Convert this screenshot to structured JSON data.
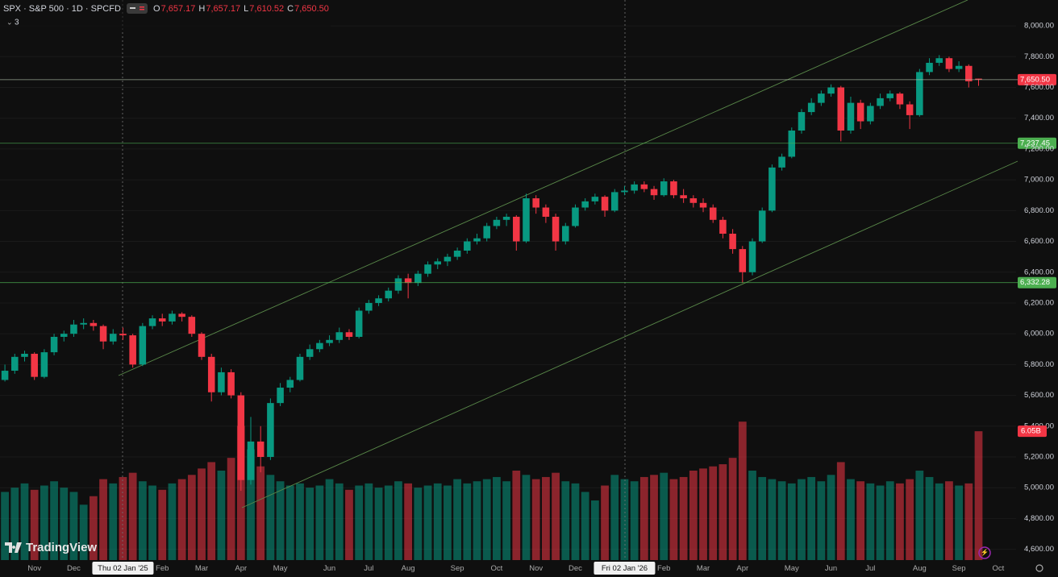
{
  "header": {
    "symbol": "SPX · S&P 500 · 1D · SPCFD",
    "ohlc": [
      {
        "key": "O",
        "value": "7,657.17"
      },
      {
        "key": "H",
        "value": "7,657.17"
      },
      {
        "key": "L",
        "value": "7,610.52"
      },
      {
        "key": "C",
        "value": "7,650.50"
      }
    ],
    "indicators": "3"
  },
  "branding": "TradingView",
  "chart_data": {
    "type": "candlestick",
    "up_color": "#089981",
    "down_color": "#f23645",
    "categories": [
      null,
      null,
      null,
      "Nov",
      null,
      null,
      null,
      "Dec",
      null,
      null,
      null,
      null,
      "Thu 02 Jan '25",
      null,
      null,
      null,
      "Feb",
      null,
      null,
      null,
      "Mar",
      null,
      null,
      null,
      "Apr",
      null,
      null,
      null,
      "May",
      null,
      null,
      null,
      null,
      "Jun",
      null,
      null,
      null,
      "Jul",
      null,
      null,
      null,
      "Aug",
      null,
      null,
      null,
      null,
      "Sep",
      null,
      null,
      null,
      "Oct",
      null,
      null,
      null,
      "Nov",
      null,
      null,
      null,
      "Dec",
      null,
      null,
      null,
      null,
      "Fri 02 Jan '26",
      null,
      null,
      null,
      "Feb",
      null,
      null,
      null,
      "Mar",
      null,
      null,
      null,
      "Apr",
      null,
      null,
      null,
      null,
      "May",
      null,
      null,
      null,
      "Jun",
      null,
      null,
      null,
      "Jul",
      null,
      null,
      null,
      null,
      "Aug",
      null,
      null,
      null,
      "Sep",
      null,
      null,
      null,
      "Oct"
    ],
    "ohlc": [
      [
        5700,
        5800,
        5690,
        5760
      ],
      [
        5760,
        5870,
        5740,
        5850
      ],
      [
        5850,
        5890,
        5820,
        5870
      ],
      [
        5870,
        5880,
        5700,
        5720
      ],
      [
        5720,
        5900,
        5710,
        5880
      ],
      [
        5880,
        6000,
        5860,
        5980
      ],
      [
        5980,
        6020,
        5950,
        6000
      ],
      [
        6000,
        6090,
        5980,
        6060
      ],
      [
        6060,
        6100,
        6030,
        6070
      ],
      [
        6070,
        6090,
        6020,
        6050
      ],
      [
        6050,
        6060,
        5900,
        5950
      ],
      [
        5950,
        6030,
        5930,
        6000
      ],
      [
        6000,
        6040,
        5960,
        5990
      ],
      [
        5990,
        6000,
        5780,
        5800
      ],
      [
        5800,
        6070,
        5790,
        6050
      ],
      [
        6050,
        6120,
        6030,
        6100
      ],
      [
        6100,
        6130,
        6050,
        6080
      ],
      [
        6080,
        6150,
        6060,
        6130
      ],
      [
        6130,
        6140,
        6080,
        6110
      ],
      [
        6110,
        6120,
        5980,
        6000
      ],
      [
        6000,
        6010,
        5830,
        5850
      ],
      [
        5850,
        5870,
        5560,
        5620
      ],
      [
        5620,
        5780,
        5600,
        5750
      ],
      [
        5750,
        5770,
        5580,
        5600
      ],
      [
        5600,
        5620,
        4980,
        5050
      ],
      [
        5050,
        5460,
        5020,
        5300
      ],
      [
        5300,
        5400,
        5100,
        5200
      ],
      [
        5200,
        5580,
        5180,
        5550
      ],
      [
        5550,
        5680,
        5530,
        5650
      ],
      [
        5650,
        5720,
        5620,
        5700
      ],
      [
        5700,
        5870,
        5690,
        5850
      ],
      [
        5850,
        5930,
        5830,
        5900
      ],
      [
        5900,
        5960,
        5880,
        5940
      ],
      [
        5940,
        5990,
        5920,
        5960
      ],
      [
        5960,
        6040,
        5940,
        6010
      ],
      [
        6010,
        6030,
        5960,
        5980
      ],
      [
        5980,
        6170,
        5970,
        6150
      ],
      [
        6150,
        6220,
        6130,
        6200
      ],
      [
        6200,
        6250,
        6180,
        6230
      ],
      [
        6230,
        6300,
        6210,
        6280
      ],
      [
        6280,
        6380,
        6260,
        6360
      ],
      [
        6360,
        6390,
        6230,
        6330
      ],
      [
        6330,
        6410,
        6310,
        6390
      ],
      [
        6390,
        6470,
        6370,
        6450
      ],
      [
        6450,
        6490,
        6420,
        6470
      ],
      [
        6470,
        6520,
        6440,
        6500
      ],
      [
        6500,
        6560,
        6480,
        6540
      ],
      [
        6540,
        6620,
        6520,
        6600
      ],
      [
        6600,
        6650,
        6580,
        6620
      ],
      [
        6620,
        6720,
        6600,
        6700
      ],
      [
        6700,
        6760,
        6680,
        6740
      ],
      [
        6740,
        6780,
        6700,
        6760
      ],
      [
        6760,
        6770,
        6540,
        6600
      ],
      [
        6600,
        6910,
        6590,
        6880
      ],
      [
        6880,
        6900,
        6780,
        6820
      ],
      [
        6820,
        6840,
        6720,
        6760
      ],
      [
        6760,
        6780,
        6540,
        6600
      ],
      [
        6600,
        6720,
        6580,
        6700
      ],
      [
        6700,
        6840,
        6690,
        6820
      ],
      [
        6820,
        6880,
        6800,
        6860
      ],
      [
        6860,
        6910,
        6840,
        6890
      ],
      [
        6890,
        6900,
        6760,
        6800
      ],
      [
        6800,
        6940,
        6790,
        6920
      ],
      [
        6920,
        6960,
        6900,
        6930
      ],
      [
        6930,
        6990,
        6910,
        6970
      ],
      [
        6970,
        6990,
        6920,
        6940
      ],
      [
        6940,
        6960,
        6870,
        6900
      ],
      [
        6900,
        7010,
        6890,
        6990
      ],
      [
        6990,
        7000,
        6880,
        6900
      ],
      [
        6900,
        6940,
        6850,
        6880
      ],
      [
        6880,
        6900,
        6820,
        6850
      ],
      [
        6850,
        6880,
        6790,
        6820
      ],
      [
        6820,
        6840,
        6720,
        6740
      ],
      [
        6740,
        6760,
        6620,
        6650
      ],
      [
        6650,
        6680,
        6520,
        6550
      ],
      [
        6550,
        6570,
        6330,
        6400
      ],
      [
        6400,
        6620,
        6380,
        6600
      ],
      [
        6600,
        6820,
        6590,
        6800
      ],
      [
        6800,
        7100,
        6790,
        7080
      ],
      [
        7080,
        7170,
        7060,
        7150
      ],
      [
        7150,
        7340,
        7140,
        7320
      ],
      [
        7320,
        7460,
        7300,
        7440
      ],
      [
        7440,
        7530,
        7420,
        7500
      ],
      [
        7500,
        7580,
        7480,
        7560
      ],
      [
        7560,
        7620,
        7540,
        7600
      ],
      [
        7600,
        7610,
        7250,
        7320
      ],
      [
        7320,
        7540,
        7300,
        7500
      ],
      [
        7500,
        7520,
        7330,
        7380
      ],
      [
        7380,
        7500,
        7360,
        7480
      ],
      [
        7480,
        7560,
        7460,
        7530
      ],
      [
        7530,
        7580,
        7510,
        7560
      ],
      [
        7560,
        7570,
        7460,
        7490
      ],
      [
        7490,
        7510,
        7330,
        7420
      ],
      [
        7420,
        7720,
        7410,
        7700
      ],
      [
        7700,
        7790,
        7680,
        7760
      ],
      [
        7760,
        7810,
        7740,
        7790
      ],
      [
        7790,
        7800,
        7700,
        7720
      ],
      [
        7720,
        7770,
        7700,
        7740
      ],
      [
        7740,
        7750,
        7600,
        7640
      ],
      [
        7657.17,
        7657.17,
        7610.52,
        7650.5
      ],
      null,
      null
    ],
    "ylim": [
      4530,
      8168
    ],
    "yticks": [
      {
        "value": 4600,
        "label": "4,600.00"
      },
      {
        "value": 4800,
        "label": "4,800.00"
      },
      {
        "value": 5000,
        "label": "5,000.00"
      },
      {
        "value": 5200,
        "label": "5,200.00"
      },
      {
        "value": 5400,
        "label": "5,400.00"
      },
      {
        "value": 5600,
        "label": "5,600.00"
      },
      {
        "value": 5800,
        "label": "5,800.00"
      },
      {
        "value": 6000,
        "label": "6,000.00"
      },
      {
        "value": 6200,
        "label": "6,200.00"
      },
      {
        "value": 6400,
        "label": "6,400.00"
      },
      {
        "value": 6600,
        "label": "6,600.00"
      },
      {
        "value": 6800,
        "label": "6,800.00"
      },
      {
        "value": 7000,
        "label": "7,000.00"
      },
      {
        "value": 7200,
        "label": "7,200.00"
      },
      {
        "value": 7400,
        "label": "7,400.00"
      },
      {
        "value": 7600,
        "label": "7,600.00"
      },
      {
        "value": 7800,
        "label": "7,800.00"
      },
      {
        "value": 8000,
        "label": "8,000.00"
      }
    ],
    "levels": [
      {
        "value": 7650.5,
        "label": "7,650.50",
        "color": "#f23645",
        "line_color": "#b8c8b0"
      },
      {
        "value": 7237.45,
        "label": "7,237.45",
        "color": "#4caf50",
        "line_color": "#4caf50"
      },
      {
        "value": 6332.28,
        "label": "6,332.28",
        "color": "#4caf50",
        "line_color": "#4caf50"
      }
    ],
    "volume": {
      "vlim": [
        0,
        26.3
      ],
      "values": [
        3.2,
        3.4,
        3.6,
        3.3,
        3.5,
        3.7,
        3.4,
        3.2,
        2.6,
        3.0,
        3.8,
        3.6,
        3.9,
        4.1,
        3.7,
        3.5,
        3.3,
        3.6,
        3.8,
        4.0,
        4.3,
        4.6,
        4.2,
        4.8,
        6.3,
        5.2,
        4.4,
        4.0,
        3.7,
        3.5,
        3.6,
        3.4,
        3.5,
        3.8,
        3.6,
        3.3,
        3.5,
        3.6,
        3.4,
        3.5,
        3.7,
        3.6,
        3.4,
        3.5,
        3.6,
        3.5,
        3.8,
        3.6,
        3.7,
        3.8,
        3.9,
        3.7,
        4.2,
        4.0,
        3.8,
        3.9,
        4.1,
        3.7,
        3.6,
        3.2,
        2.8,
        3.5,
        4.0,
        3.8,
        3.7,
        3.9,
        4.0,
        4.1,
        3.8,
        3.9,
        4.2,
        4.3,
        4.4,
        4.5,
        4.8,
        6.5,
        4.2,
        3.9,
        3.8,
        3.7,
        3.6,
        3.8,
        3.9,
        3.7,
        4.0,
        4.6,
        3.8,
        3.7,
        3.6,
        3.5,
        3.7,
        3.6,
        3.8,
        4.2,
        3.9,
        3.6,
        3.7,
        3.5,
        3.6,
        6.05,
        null,
        null
      ],
      "value_labels": [
        null,
        null,
        null,
        null,
        null,
        null,
        null,
        null,
        null,
        null,
        null,
        null,
        null,
        null,
        null,
        null,
        null,
        null,
        null,
        null,
        null,
        null,
        null,
        null,
        null,
        null,
        null,
        null,
        null,
        null,
        null,
        null,
        null,
        null,
        null,
        null,
        null,
        null,
        null,
        null,
        null,
        null,
        null,
        null,
        null,
        null,
        null,
        null,
        null,
        null,
        null,
        null,
        null,
        null,
        null,
        null,
        null,
        null,
        null,
        null,
        null,
        null,
        null,
        null,
        null,
        null,
        null,
        null,
        null,
        null,
        null,
        null,
        null,
        null,
        null,
        null,
        null,
        null,
        null,
        null,
        null,
        null,
        null,
        null,
        null,
        null,
        null,
        null,
        null,
        null,
        null,
        null,
        null,
        null,
        null,
        null,
        null,
        null,
        null,
        "6.05B",
        null,
        null
      ]
    }
  }
}
